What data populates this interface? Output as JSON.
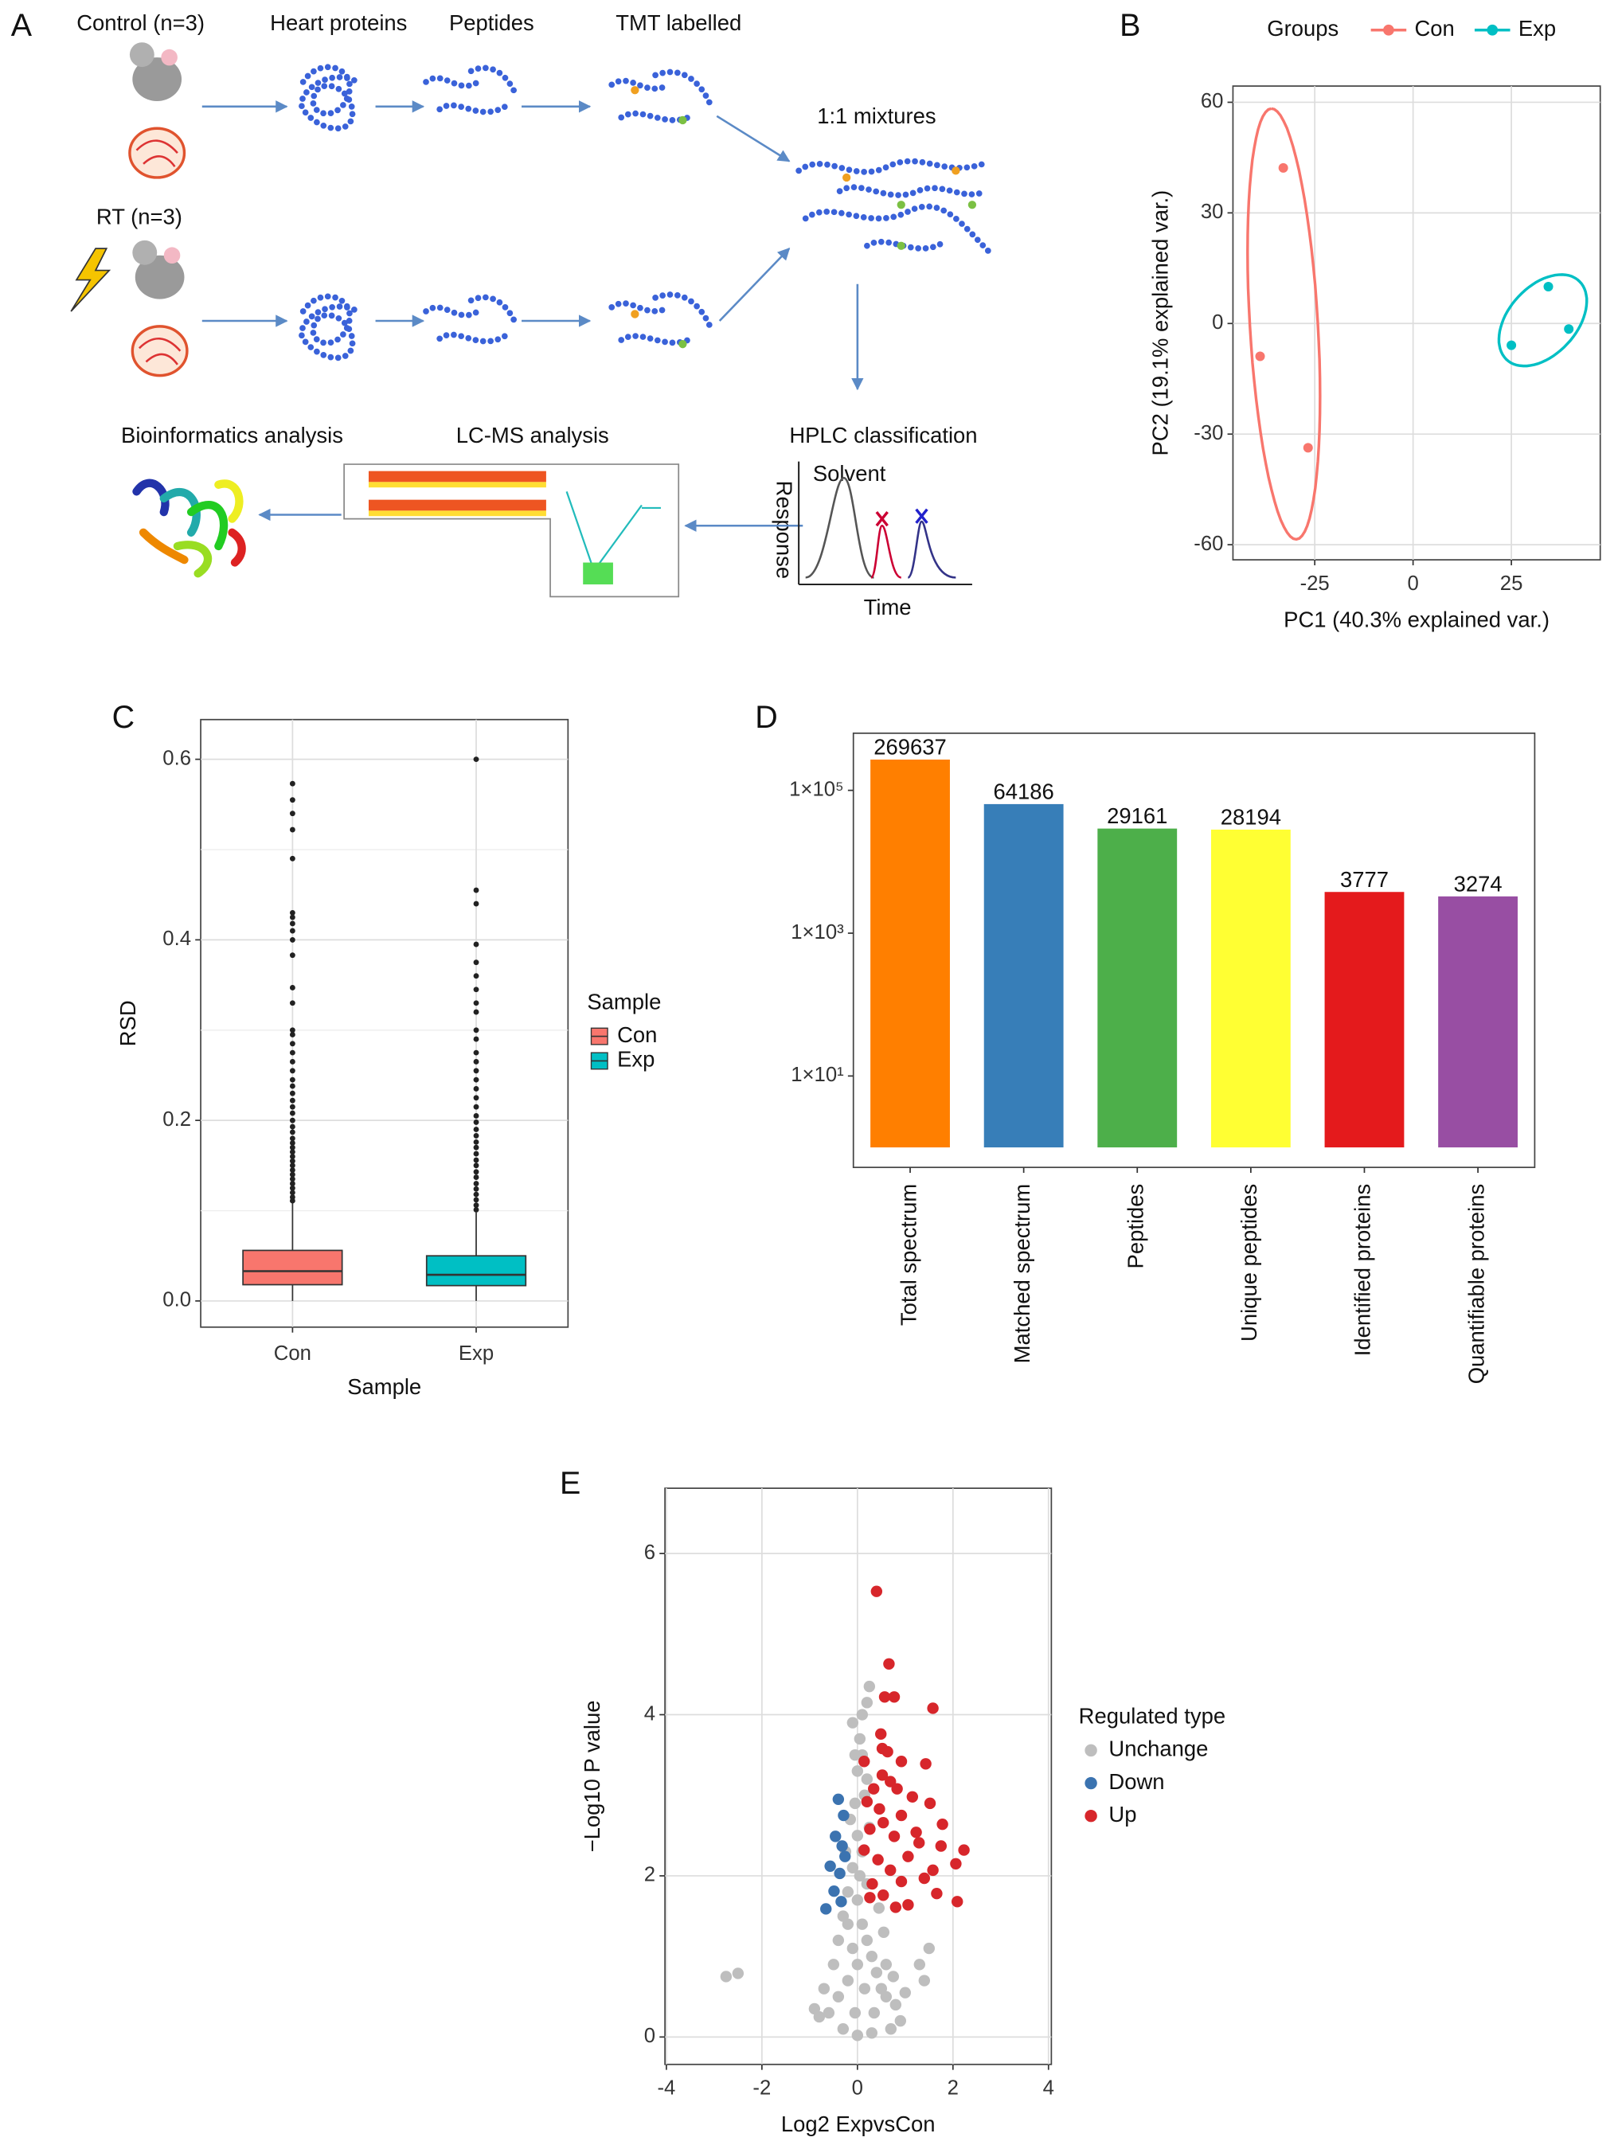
{
  "diagram": {
    "panel_label": "A",
    "groups": [
      "Control (n=3)",
      "RT (n=3)"
    ],
    "stages": [
      "Heart proteins",
      "Peptides",
      "TMT labelled",
      "1:1 mixtures",
      "HPLC classification",
      "LC-MS analysis",
      "Bioinformatics analysis"
    ],
    "hplc": {
      "peak": "Solvent",
      "y_label": "Response",
      "x_label": "Time"
    }
  },
  "chart_data": [
    {
      "type": "scatter",
      "panel_label": "B",
      "x_label": "PC1 (40.3% explained var.)",
      "y_label": "PC2 (19.1% explained var.)",
      "legend_title": "Groups",
      "legend_position": "top",
      "grid": true,
      "ellipse": true,
      "xlim": [
        -45.8,
        47.6
      ],
      "ylim": [
        -64.1,
        64.4
      ],
      "xticks": [
        -25,
        0,
        25
      ],
      "yticks": [
        -60,
        -30,
        0,
        30,
        60
      ],
      "series": [
        {
          "name": "Con",
          "color": "#F8766D",
          "x": [
            -33.0,
            -38.9,
            -26.7
          ],
          "y": [
            42.2,
            -8.9,
            -33.7
          ]
        },
        {
          "name": "Exp",
          "color": "#00BFC4",
          "x": [
            34.4,
            25.0,
            39.6
          ],
          "y": [
            10.0,
            -5.9,
            -1.5
          ]
        }
      ]
    },
    {
      "type": "box",
      "panel_label": "C",
      "x_label": "Sample",
      "y_label": "RSD",
      "legend_title": "Sample",
      "legend_position": "right",
      "grid": true,
      "categories": [
        "Con",
        "Exp"
      ],
      "ylim": [
        -0.029,
        0.644
      ],
      "yticks": [
        {
          "value": 0,
          "label": "0.0"
        },
        0.2,
        0.4,
        0.6
      ],
      "minor_yticks": [
        0.1,
        0.3,
        0.5
      ],
      "series": [
        {
          "name": "Con",
          "color": "#F8766D",
          "min": 0.0,
          "q1": 0.018,
          "median": 0.033,
          "q3": 0.056,
          "max": 0.11,
          "outliers": [
            0.573,
            0.555,
            0.54,
            0.522,
            0.49,
            0.43,
            0.425,
            0.418,
            0.41,
            0.4,
            0.383,
            0.347,
            0.33,
            0.3,
            0.295,
            0.285,
            0.275,
            0.265,
            0.255,
            0.245,
            0.238,
            0.23,
            0.222,
            0.215,
            0.208,
            0.2,
            0.193,
            0.187,
            0.18,
            0.175,
            0.17,
            0.165,
            0.16,
            0.155,
            0.15,
            0.145,
            0.14,
            0.135,
            0.13,
            0.125,
            0.12,
            0.115,
            0.111
          ]
        },
        {
          "name": "Exp",
          "color": "#00BFC4",
          "min": 0.0,
          "q1": 0.017,
          "median": 0.029,
          "q3": 0.05,
          "max": 0.098,
          "outliers": [
            0.6,
            0.455,
            0.44,
            0.395,
            0.375,
            0.36,
            0.345,
            0.33,
            0.32,
            0.3,
            0.29,
            0.275,
            0.265,
            0.255,
            0.245,
            0.235,
            0.225,
            0.215,
            0.205,
            0.198,
            0.19,
            0.183,
            0.176,
            0.17,
            0.163,
            0.156,
            0.15,
            0.143,
            0.137,
            0.13,
            0.124,
            0.118,
            0.112,
            0.106,
            0.101
          ]
        }
      ]
    },
    {
      "type": "bar",
      "panel_label": "D",
      "log_y": true,
      "grid": false,
      "categories": [
        "Total spectrum",
        "Matched spectrum",
        "Peptides",
        "Unique peptides",
        "Identified proteins",
        "Quantifiable proteins"
      ],
      "values": [
        269637,
        64186,
        29161,
        28194,
        3777,
        3274
      ],
      "colors": [
        "#FF7F00",
        "#377EB8",
        "#4DAF4A",
        "#FFFF33",
        "#E41A1C",
        "#984EA3"
      ],
      "ylim": [
        0.525,
        631000
      ],
      "yticks": [
        {
          "value": 10,
          "label": "1×10¹"
        },
        {
          "value": 1000,
          "label": "1×10³"
        },
        {
          "value": 100000,
          "label": "1×10⁵"
        }
      ]
    },
    {
      "type": "scatter",
      "panel_label": "E",
      "x_label": "Log2 ExpvsCon",
      "y_label": "−Log10 P value",
      "legend_title": "Regulated type",
      "legend_position": "right",
      "grid": true,
      "xlim": [
        -4.03,
        4.06
      ],
      "ylim": [
        -0.34,
        6.81
      ],
      "xticks": [
        -4,
        -2,
        0,
        2,
        4
      ],
      "yticks": [
        0,
        2,
        4,
        6
      ],
      "series": [
        {
          "name": "Unchange",
          "color": "#BEBEBE",
          "x": [
            -2.75,
            -2.5,
            -0.8,
            -0.7,
            -0.5,
            -0.4,
            -0.3,
            -0.2,
            -0.1,
            0.0,
            -0.05,
            0.0,
            0.05,
            0.1,
            0.25,
            0.2,
            -0.1,
            0.1,
            0.15,
            -0.15,
            0.1,
            -0.2,
            0.2,
            0.3,
            0.4,
            0.5,
            0.6,
            0.8,
            1.0,
            1.3,
            1.5,
            1.4,
            0.9,
            0.7,
            0.3,
            0.0,
            -0.3,
            -0.6,
            -0.9,
            -0.4,
            -0.2,
            0.0,
            0.1,
            0.0,
            0.2,
            -0.1,
            0.15,
            -0.05,
            0.35,
            0.55,
            0.45,
            0.6,
            0.75,
            -0.25,
            0.05,
            0.25,
            -0.05,
            0.2
          ],
          "y": [
            0.75,
            0.79,
            0.25,
            0.6,
            0.9,
            1.2,
            1.5,
            1.8,
            2.1,
            2.5,
            2.9,
            3.3,
            3.7,
            4.0,
            4.35,
            4.15,
            3.9,
            3.5,
            3.0,
            2.7,
            2.3,
            1.4,
            1.2,
            1.0,
            0.8,
            0.6,
            0.5,
            0.4,
            0.55,
            0.9,
            1.1,
            0.7,
            0.2,
            0.1,
            0.05,
            0.02,
            0.1,
            0.3,
            0.35,
            0.5,
            0.7,
            0.9,
            1.4,
            1.7,
            1.9,
            1.1,
            0.6,
            0.3,
            0.3,
            1.3,
            1.6,
            0.9,
            0.75,
            2.3,
            2.0,
            2.6,
            3.5,
            3.2
          ]
        },
        {
          "name": "Down",
          "color": "#3B73B0",
          "x": [
            -0.4,
            -0.29,
            -0.46,
            -0.32,
            -0.57,
            -0.37,
            -0.49,
            -0.34,
            -0.66,
            -0.26
          ],
          "y": [
            2.95,
            2.75,
            2.49,
            2.37,
            2.12,
            2.03,
            1.81,
            1.68,
            1.59,
            2.24
          ]
        },
        {
          "name": "Up",
          "color": "#D7262B",
          "x": [
            0.4,
            0.66,
            0.57,
            0.77,
            1.58,
            0.49,
            0.52,
            0.92,
            1.43,
            0.52,
            0.69,
            0.34,
            1.15,
            1.52,
            1.78,
            0.92,
            0.54,
            0.26,
            0.77,
            1.29,
            1.75,
            2.23,
            2.06,
            1.06,
            0.43,
            0.69,
            1.58,
            0.31,
            0.92,
            1.4,
            2.09,
            1.66,
            0.54,
            0.14,
            0.2,
            0.14,
            0.26,
            1.06,
            0.8,
            0.46,
            0.63,
            0.83,
            1.23
          ],
          "y": [
            5.53,
            4.63,
            4.22,
            4.22,
            4.08,
            3.76,
            3.58,
            3.42,
            3.39,
            3.25,
            3.17,
            3.08,
            2.98,
            2.9,
            2.64,
            2.75,
            2.66,
            2.58,
            2.49,
            2.41,
            2.37,
            2.32,
            2.15,
            2.24,
            2.2,
            2.07,
            2.07,
            1.9,
            1.93,
            1.97,
            1.68,
            1.78,
            1.76,
            2.32,
            2.92,
            3.42,
            1.73,
            1.64,
            1.61,
            2.83,
            3.54,
            3.08,
            2.54
          ]
        }
      ]
    }
  ]
}
